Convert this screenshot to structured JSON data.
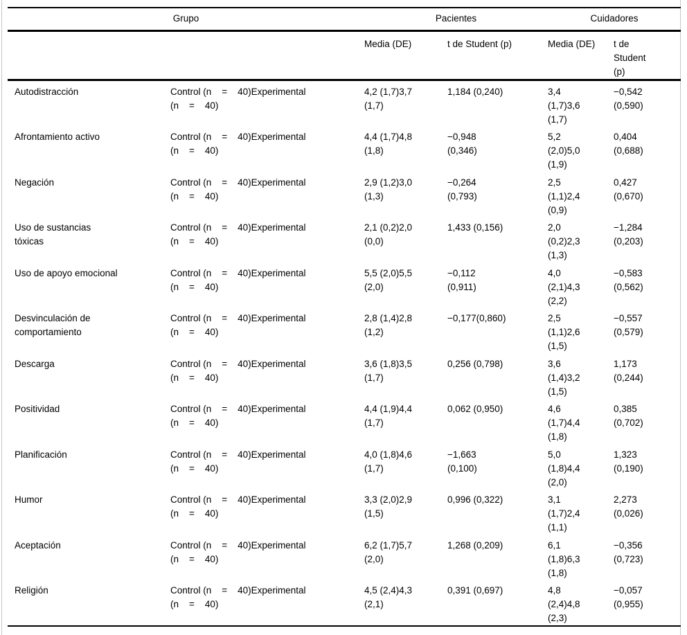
{
  "table": {
    "header_groups": [
      {
        "label": "Grupo",
        "span": 2
      },
      {
        "label": "Pacientes",
        "span": 2
      },
      {
        "label": "Cuidadores",
        "span": 2
      }
    ],
    "columns": [
      "",
      "",
      "Media (DE)",
      "t de Student (p)",
      "Media (DE)",
      "t de\nStudent\n(p)"
    ],
    "rows": [
      {
        "label": "Autodistracción",
        "group": "Control (n    =    40)Experimental\n(n    =    40)",
        "pacientes_media": "4,2 (1,7)3,7\n(1,7)",
        "pacientes_t": "1,184 (0,240)",
        "cuidadores_media": "3,4\n(1,7)3,6\n(1,7)",
        "cuidadores_t": "−0,542\n(0,590)"
      },
      {
        "label": "Afrontamiento activo",
        "group": "Control (n    =    40)Experimental\n(n    =    40)",
        "pacientes_media": "4,4 (1,7)4,8\n(1,8)",
        "pacientes_t": "−0,948\n(0,346)",
        "cuidadores_media": "5,2\n(2,0)5,0\n(1,9)",
        "cuidadores_t": "0,404\n(0,688)"
      },
      {
        "label": "Negación",
        "group": "Control (n    =    40)Experimental\n(n    =    40)",
        "pacientes_media": "2,9 (1,2)3,0\n(1,3)",
        "pacientes_t": "−0,264\n(0,793)",
        "cuidadores_media": "2,5\n(1,1)2,4\n(0,9)",
        "cuidadores_t": "0,427\n(0,670)"
      },
      {
        "label": "Uso de sustancias\ntóxicas",
        "group": "Control (n    =    40)Experimental\n(n    =    40)",
        "pacientes_media": "2,1 (0,2)2,0\n(0,0)",
        "pacientes_t": "1,433 (0,156)",
        "cuidadores_media": "2,0\n(0,2)2,3\n(1,3)",
        "cuidadores_t": "−1,284\n(0,203)"
      },
      {
        "label": "Uso de apoyo emocional",
        "group": "Control (n    =    40)Experimental\n(n    =    40)",
        "pacientes_media": "5,5 (2,0)5,5\n(2,0)",
        "pacientes_t": "−0,112\n(0,911)",
        "cuidadores_media": "4,0\n(2,1)4,3\n(2,2)",
        "cuidadores_t": "−0,583\n(0,562)"
      },
      {
        "label": "Desvinculación de\ncomportamiento",
        "group": "Control (n    =    40)Experimental\n(n    =    40)",
        "pacientes_media": "2,8 (1,4)2,8\n(1,2)",
        "pacientes_t": "−0,177(0,860)",
        "cuidadores_media": "2,5\n(1,1)2,6\n(1,5)",
        "cuidadores_t": "−0,557\n(0,579)"
      },
      {
        "label": "Descarga",
        "group": "Control (n    =    40)Experimental\n(n    =    40)",
        "pacientes_media": "3,6 (1,8)3,5\n(1,7)",
        "pacientes_t": "0,256 (0,798)",
        "cuidadores_media": "3,6\n(1,4)3,2\n(1,5)",
        "cuidadores_t": "1,173\n(0,244)"
      },
      {
        "label": "Positividad",
        "group": "Control (n    =    40)Experimental\n(n    =    40)",
        "pacientes_media": "4,4 (1,9)4,4\n(1,7)",
        "pacientes_t": "0,062 (0,950)",
        "cuidadores_media": "4,6\n(1,7)4,4\n(1,8)",
        "cuidadores_t": "0,385\n(0,702)"
      },
      {
        "label": "Planificación",
        "group": "Control (n    =    40)Experimental\n(n    =    40)",
        "pacientes_media": "4,0 (1,8)4,6\n(1,7)",
        "pacientes_t": "−1,663\n(0,100)",
        "cuidadores_media": "5,0\n(1,8)4,4\n(2,0)",
        "cuidadores_t": "1,323\n(0,190)"
      },
      {
        "label": "Humor",
        "group": "Control (n    =    40)Experimental\n(n    =    40)",
        "pacientes_media": "3,3 (2,0)2,9\n(1,5)",
        "pacientes_t": "0,996 (0,322)",
        "cuidadores_media": "3,1\n(1,7)2,4\n(1,1)",
        "cuidadores_t": "2,273\n(0,026)"
      },
      {
        "label": "Aceptación",
        "group": "Control (n    =    40)Experimental\n(n    =    40)",
        "pacientes_media": "6,2 (1,7)5,7\n(2,0)",
        "pacientes_t": "1,268 (0,209)",
        "cuidadores_media": "6,1\n(1,8)6,3\n(1,8)",
        "cuidadores_t": "−0,356\n(0,723)"
      },
      {
        "label": "Religión",
        "group": "Control (n    =    40)Experimental\n(n    =    40)",
        "pacientes_media": "4,5 (2,4)4,3\n(2,1)",
        "pacientes_t": "0,391 (0,697)",
        "cuidadores_media": "4,8\n(2,4)4,8\n(2,3)",
        "cuidadores_t": "−0,057\n(0,955)"
      }
    ]
  }
}
